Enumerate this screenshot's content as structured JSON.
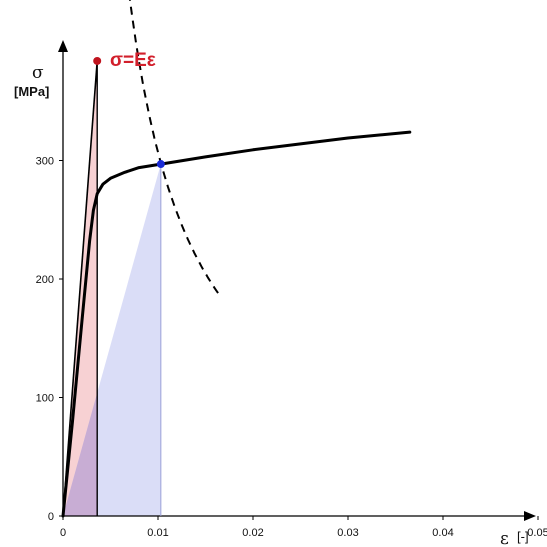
{
  "chart_data": {
    "type": "line",
    "ylabel_symbol": "σ",
    "ylabel_unit": "[MPa]",
    "xlabel_symbol": "ε",
    "xlabel_unit": "[-]",
    "xlim": [
      0,
      0.05
    ],
    "ylim": [
      0,
      400
    ],
    "x_ticks": [
      0,
      0.01,
      0.02,
      0.03,
      0.04,
      0.05
    ],
    "x_tick_labels": [
      "0",
      "0.01",
      "0.02",
      "0.03",
      "0.04",
      "0.05"
    ],
    "y_ticks": [
      0,
      100,
      200,
      300
    ],
    "y_tick_labels": [
      "0",
      "100",
      "200",
      "300"
    ],
    "grid": false,
    "annotation": "σ=Eε",
    "colors": {
      "curve": "#000000",
      "hyperbola": "#000000",
      "annotation": "#d21f2b",
      "red_point": "#c0141e",
      "blue_point": "#1a2bd6",
      "red_fill": "#f6c9cb",
      "blue_fill": "#d1d4f5",
      "overlap_fill": "#c4a6cf"
    },
    "series": [
      {
        "role": "stress-strain-curve",
        "x": [
          0,
          0.001,
          0.002,
          0.0028,
          0.0032,
          0.0036,
          0.0042,
          0.005,
          0.0065,
          0.008,
          0.0103,
          0.015,
          0.02,
          0.025,
          0.03,
          0.0365
        ],
        "y": [
          0,
          80,
          165,
          232,
          258,
          272,
          280,
          285,
          290,
          294,
          297,
          303,
          309,
          314,
          319,
          324
        ]
      },
      {
        "role": "linear-elastic",
        "x": [
          0,
          0.0036
        ],
        "y": [
          0,
          384
        ]
      },
      {
        "role": "neuber-hyperbola",
        "c": 3.07,
        "x_range": [
          0.0024,
          0.0165
        ]
      }
    ],
    "points": [
      {
        "role": "elastic-point",
        "x": 0.0036,
        "y": 384
      },
      {
        "role": "intersection-point",
        "x": 0.0103,
        "y": 297
      }
    ]
  }
}
